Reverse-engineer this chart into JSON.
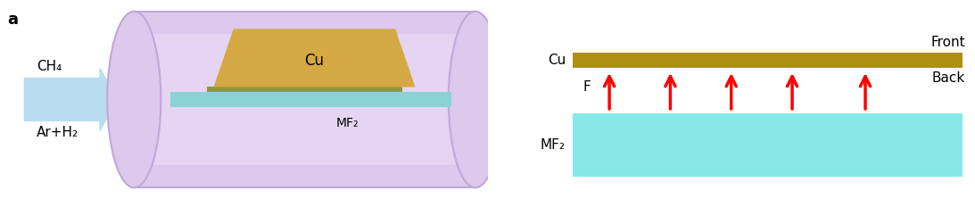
{
  "panel_a_label": "a",
  "bg_color": "#ffffff",
  "tube_color": "#ddc8ee",
  "tube_edge_color": "#c0a8d8",
  "cu_color_3d": "#d4a843",
  "mf2_color_3d": "#88d4d4",
  "graphene_color_3d": "#8a9a3a",
  "arrow_color": "#b8ddf0",
  "ch4_label": "CH₄",
  "arh2_label": "Ar+H₂",
  "cu_label_3d": "Cu",
  "mf2_label_3d": "MF₂",
  "cu_color_2d": "#b09010",
  "mf2_color_2d": "#88e8e8",
  "cu_label_2d": "Cu",
  "mf2_label_2d": "MF₂",
  "front_label": "Front",
  "back_label": "Back",
  "f_label": "F",
  "arrow_red": "#ff0000",
  "text_color": "#000000",
  "font_size": 10,
  "label_font_size": 13
}
